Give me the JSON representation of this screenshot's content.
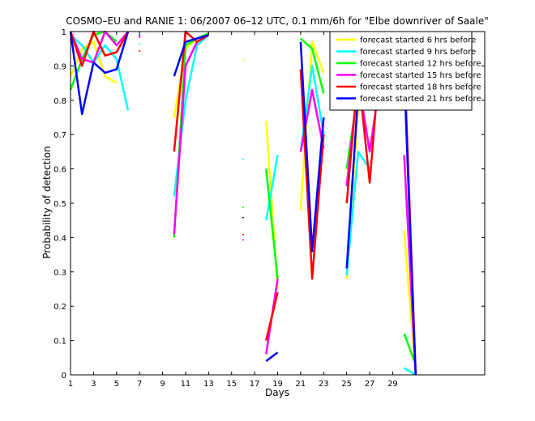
{
  "chart_data": {
    "type": "line",
    "title": "COSMO–EU and RANIE 1: 06/2007 06–12 UTC, 0.1 mm/6h for \"Elbe downriver of Saale\"",
    "xlabel": "Days",
    "ylabel": "Probability of detection",
    "xlim": [
      1,
      37
    ],
    "ylim": [
      0,
      1
    ],
    "x_ticks": [
      1,
      3,
      5,
      7,
      9,
      11,
      13,
      15,
      17,
      19,
      21,
      23,
      25,
      27,
      29
    ],
    "x_tick_labels": [
      "1",
      "3",
      "5",
      "7",
      "9",
      "11",
      "13",
      "15",
      "17",
      "19",
      "21",
      "23",
      "25",
      "27",
      "29"
    ],
    "y_ticks": [
      0,
      0.1,
      0.2,
      0.3,
      0.4,
      0.5,
      0.6,
      0.7,
      0.8,
      0.9,
      1
    ],
    "y_tick_labels": [
      "0",
      "0.1",
      "0.2",
      "0.3",
      "0.4",
      "0.5",
      "0.6",
      "0.7",
      "0.8",
      "0.9",
      "1"
    ],
    "grid": false,
    "legend_position": "top-right",
    "series": [
      {
        "name": "forecast started 6 hrs before",
        "color": "#ffff00",
        "segments": [
          [
            [
              1,
              0.87
            ],
            [
              2,
              0.95
            ],
            [
              3,
              0.97
            ],
            [
              4,
              0.87
            ],
            [
              5,
              0.85
            ]
          ],
          [
            [
              7,
              0.945
            ]
          ],
          [
            [
              10,
              0.75
            ],
            [
              11,
              0.95
            ],
            [
              12,
              0.98
            ],
            [
              13,
              0.99
            ]
          ],
          [
            [
              16,
              0.92
            ]
          ],
          [
            [
              18,
              0.74
            ],
            [
              19,
              0.25
            ]
          ],
          [
            [
              21,
              0.48
            ],
            [
              22,
              0.97
            ],
            [
              23,
              0.88
            ]
          ],
          [
            [
              25,
              0.28
            ],
            [
              26,
              0.78
            ],
            [
              27,
              0.9
            ],
            [
              28,
              0.97
            ]
          ],
          [
            [
              30,
              0.42
            ],
            [
              31,
              0.0
            ]
          ]
        ]
      },
      {
        "name": "forecast started 9 hrs before",
        "color": "#00ffff",
        "segments": [
          [
            [
              1,
              0.99
            ],
            [
              2,
              0.96
            ],
            [
              3,
              0.91
            ],
            [
              4,
              0.96
            ],
            [
              5,
              0.92
            ],
            [
              6,
              0.77
            ]
          ],
          [
            [
              7,
              0.965
            ]
          ],
          [
            [
              10,
              0.52
            ],
            [
              11,
              0.8
            ],
            [
              12,
              0.96
            ],
            [
              13,
              0.99
            ]
          ],
          [
            [
              16,
              0.63
            ]
          ],
          [
            [
              18,
              0.45
            ],
            [
              19,
              0.64
            ]
          ],
          [
            [
              21,
              0.65
            ],
            [
              22,
              0.9
            ],
            [
              23,
              0.7
            ]
          ],
          [
            [
              25,
              0.29
            ],
            [
              26,
              0.65
            ],
            [
              27,
              0.6
            ]
          ],
          [
            [
              30,
              0.02
            ],
            [
              31,
              0.0
            ]
          ]
        ]
      },
      {
        "name": "forecast started 12 hrs before",
        "color": "#00ff00",
        "segments": [
          [
            [
              1,
              0.83
            ],
            [
              2,
              0.92
            ],
            [
              3,
              0.99
            ],
            [
              4,
              1.0
            ],
            [
              5,
              0.97
            ]
          ],
          [
            [
              10,
              0.4
            ],
            [
              11,
              0.96
            ],
            [
              12,
              0.98
            ],
            [
              13,
              0.995
            ]
          ],
          [
            [
              16,
              0.49
            ]
          ],
          [
            [
              18,
              0.6
            ],
            [
              19,
              0.28
            ]
          ],
          [
            [
              21,
              0.98
            ],
            [
              22,
              0.95
            ],
            [
              23,
              0.82
            ]
          ],
          [
            [
              25,
              0.6
            ],
            [
              26,
              0.83
            ],
            [
              27,
              0.82
            ],
            [
              28,
              0.9
            ]
          ],
          [
            [
              30,
              0.12
            ],
            [
              31,
              0.03
            ]
          ]
        ]
      },
      {
        "name": "forecast started 15 hrs before",
        "color": "#ff00ff",
        "segments": [
          [
            [
              1,
              1.0
            ],
            [
              2,
              0.92
            ],
            [
              3,
              0.91
            ],
            [
              4,
              1.0
            ],
            [
              5,
              0.96
            ],
            [
              6,
              1.0
            ]
          ],
          [
            [
              7,
              0.985
            ]
          ],
          [
            [
              10,
              0.41
            ],
            [
              11,
              0.9
            ],
            [
              12,
              0.97
            ],
            [
              13,
              0.99
            ]
          ],
          [
            [
              16,
              0.395
            ]
          ],
          [
            [
              18,
              0.06
            ],
            [
              19,
              0.28
            ]
          ],
          [
            [
              21,
              0.65
            ],
            [
              22,
              0.83
            ],
            [
              23,
              0.66
            ]
          ],
          [
            [
              25,
              0.55
            ],
            [
              26,
              0.86
            ],
            [
              27,
              0.65
            ],
            [
              28,
              0.88
            ]
          ],
          [
            [
              30,
              0.64
            ],
            [
              31,
              0.0
            ]
          ]
        ]
      },
      {
        "name": "forecast started 18 hrs before",
        "color": "#ff0000",
        "segments": [
          [
            [
              1,
              1.0
            ],
            [
              2,
              0.9
            ],
            [
              3,
              1.0
            ],
            [
              4,
              0.93
            ],
            [
              5,
              0.94
            ],
            [
              6,
              1.0
            ]
          ],
          [
            [
              7,
              0.945
            ]
          ],
          [
            [
              10,
              0.65
            ],
            [
              11,
              1.0
            ],
            [
              12,
              0.97
            ],
            [
              13,
              0.99
            ]
          ],
          [
            [
              16,
              0.41
            ]
          ],
          [
            [
              18,
              0.1
            ],
            [
              19,
              0.24
            ]
          ],
          [
            [
              21,
              0.89
            ],
            [
              22,
              0.28
            ],
            [
              23,
              0.7
            ]
          ],
          [
            [
              25,
              0.5
            ],
            [
              26,
              0.88
            ],
            [
              27,
              0.56
            ],
            [
              28,
              0.97
            ]
          ],
          [
            [
              30,
              0.93
            ],
            [
              31,
              0.0
            ]
          ]
        ]
      },
      {
        "name": "forecast started 21 hrs before",
        "color": "#0000ff",
        "segments": [
          [
            [
              1,
              1.0
            ],
            [
              2,
              0.76
            ],
            [
              3,
              0.91
            ],
            [
              4,
              0.88
            ],
            [
              5,
              0.89
            ],
            [
              6,
              1.0
            ]
          ],
          [
            [
              7,
              0.99
            ]
          ],
          [
            [
              10,
              0.87
            ],
            [
              11,
              0.97
            ],
            [
              12,
              0.98
            ],
            [
              13,
              0.99
            ]
          ],
          [
            [
              16,
              0.46
            ]
          ],
          [
            [
              18,
              0.04
            ],
            [
              19,
              0.065
            ]
          ],
          [
            [
              21,
              0.97
            ],
            [
              22,
              0.36
            ],
            [
              23,
              0.75
            ]
          ],
          [
            [
              25,
              0.31
            ],
            [
              26,
              0.82
            ],
            [
              27,
              0.81
            ],
            [
              28,
              0.92
            ]
          ],
          [
            [
              30,
              0.88
            ],
            [
              31,
              0.0
            ]
          ]
        ]
      }
    ]
  }
}
